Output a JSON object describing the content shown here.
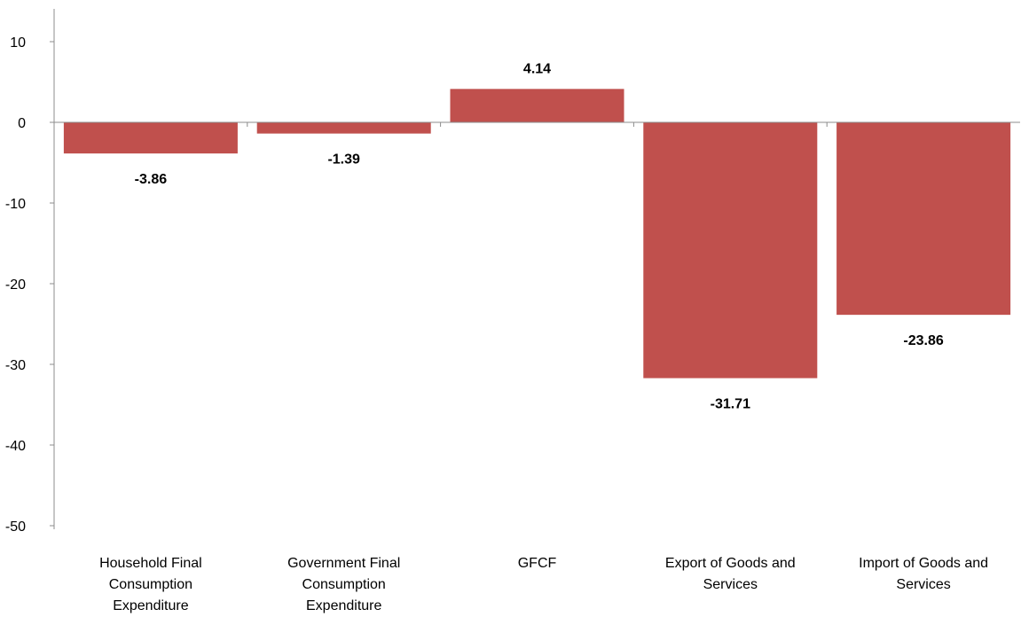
{
  "chart_data": {
    "type": "bar",
    "categories": [
      [
        "Household Final",
        "Consumption",
        "Expenditure"
      ],
      [
        "Government Final",
        "Consumption",
        "Expenditure"
      ],
      [
        "GFCF"
      ],
      [
        "Export of Goods and",
        "Services"
      ],
      [
        "Import of Goods and",
        "Services"
      ]
    ],
    "values": [
      -3.86,
      -1.39,
      4.14,
      -31.71,
      -23.86
    ],
    "value_labels": [
      "-3.86",
      "-1.39",
      "4.14",
      "-31.71",
      "-23.86"
    ],
    "yticks": [
      10,
      0,
      -10,
      -20,
      -30,
      -40,
      -50
    ],
    "ylim": [
      -50,
      10
    ],
    "bar_color": "#c0504d",
    "grid": false,
    "title": "",
    "xlabel": "",
    "ylabel": ""
  }
}
